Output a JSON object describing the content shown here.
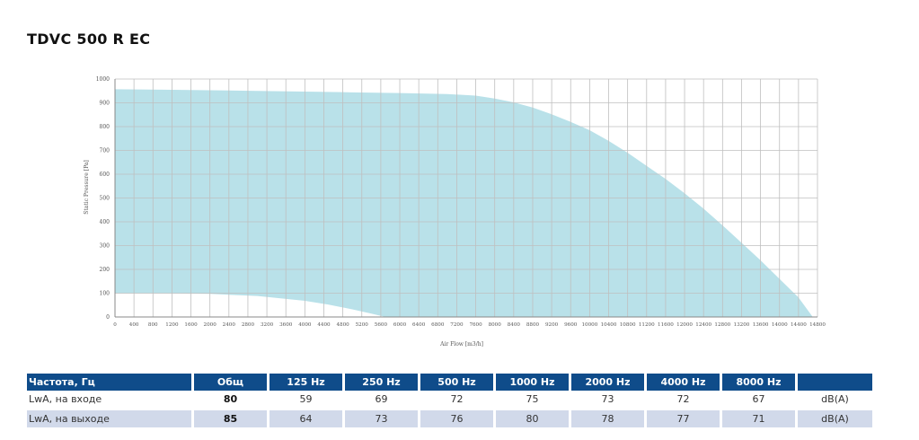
{
  "title": "TDVC 500 R EC",
  "chart_data": {
    "type": "area",
    "title": "",
    "xlabel": "Air Flow [m3/h]",
    "ylabel": "Static Pressure [Pa]",
    "xlim": [
      0,
      14800
    ],
    "ylim": [
      0,
      1000
    ],
    "grid": true,
    "fill_color": "#b9e1e9",
    "x_ticks": [
      0,
      400,
      800,
      1200,
      1600,
      2000,
      2400,
      2800,
      3200,
      3600,
      4000,
      4400,
      4800,
      5200,
      5600,
      6000,
      6400,
      6800,
      7200,
      7600,
      8000,
      8400,
      8800,
      9200,
      9600,
      10000,
      10400,
      10800,
      11200,
      11600,
      12000,
      12400,
      12800,
      13200,
      13600,
      14000,
      14400,
      14800
    ],
    "y_ticks": [
      0,
      100,
      200,
      300,
      400,
      500,
      600,
      700,
      800,
      900,
      1000
    ],
    "upper_curve": {
      "x": [
        0,
        1000,
        2000,
        3000,
        4000,
        5000,
        6000,
        7000,
        7600,
        8000,
        8400,
        8800,
        9200,
        9600,
        10000,
        10400,
        10800,
        11200,
        11600,
        12000,
        12400,
        12800,
        13200,
        13600,
        14000,
        14400,
        14700
      ],
      "y": [
        957,
        955,
        953,
        950,
        947,
        944,
        941,
        937,
        930,
        918,
        902,
        880,
        852,
        820,
        785,
        740,
        690,
        635,
        580,
        520,
        455,
        385,
        312,
        238,
        160,
        82,
        0
      ]
    },
    "lower_curve": {
      "x": [
        0,
        1000,
        2000,
        3000,
        4000,
        4500,
        5000,
        5400,
        5700
      ],
      "y": [
        100,
        100,
        97,
        88,
        68,
        52,
        32,
        14,
        0
      ]
    }
  },
  "sound_table": {
    "headers": [
      "Частота, Гц",
      "Общ",
      "125 Hz",
      "250 Hz",
      "500 Hz",
      "1000 Hz",
      "2000 Hz",
      "4000 Hz",
      "8000 Hz",
      ""
    ],
    "rows": [
      {
        "label": "LwA, на входе",
        "total": "80",
        "values": [
          "59",
          "69",
          "72",
          "75",
          "73",
          "72",
          "67"
        ],
        "unit": "dB(A)"
      },
      {
        "label": "LwA, на выходе",
        "total": "85",
        "values": [
          "64",
          "73",
          "76",
          "80",
          "78",
          "77",
          "71"
        ],
        "unit": "dB(A)"
      }
    ]
  }
}
